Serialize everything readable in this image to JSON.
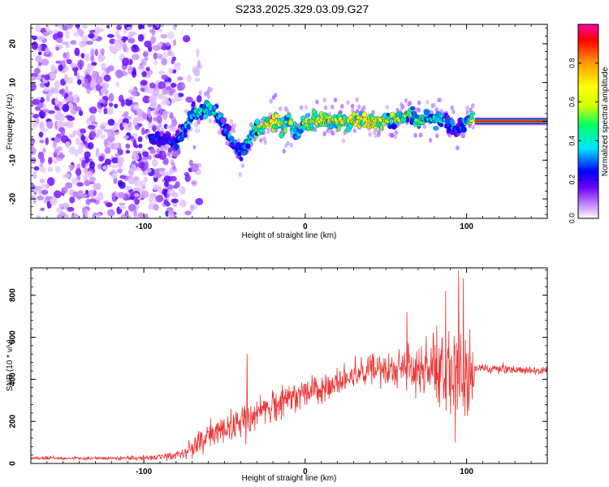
{
  "figure": {
    "title": "S233.2025.329.03.09.G27"
  },
  "chart_data": [
    {
      "type": "heatmap",
      "title": "S233.2025.329.03.09.G27",
      "xlabel": "Height of straight line (km)",
      "ylabel": "Frequency (Hz)",
      "xlim": [
        -170,
        150
      ],
      "ylim": [
        -25,
        25
      ],
      "x_ticks": [
        -100,
        0,
        100
      ],
      "x_tick_labels": [
        "-100",
        "0",
        "100"
      ],
      "y_ticks": [
        -20,
        -10,
        0,
        10,
        20
      ],
      "y_tick_labels": [
        "-20",
        "-10",
        "0",
        "10",
        "20"
      ],
      "colorbar": {
        "label": "Normalized spectral amplitude",
        "range": [
          0,
          1
        ],
        "ticks": [
          0.0,
          0.2,
          0.4,
          0.6,
          0.8
        ],
        "tick_labels": [
          "0.0",
          "0.2",
          "0.4",
          "0.6",
          "0.8"
        ],
        "colors": [
          "#ffffff",
          "#cc99ff",
          "#6a00ff",
          "#0000ff",
          "#00e5ff",
          "#00ff66",
          "#d4ff00",
          "#ffff00",
          "#ff9900",
          "#ff0000",
          "#ff00aa"
        ]
      },
      "ridge": {
        "description_x_km": [
          -95,
          -85,
          -80,
          -75,
          -70,
          -60,
          -55,
          -50,
          -45,
          -40,
          -35,
          -30,
          -25,
          -20,
          -15,
          -10,
          -5,
          0,
          10,
          20,
          30,
          40,
          50,
          60,
          65,
          70,
          75,
          80,
          85,
          90,
          95,
          100,
          105,
          110,
          150
        ],
        "center_hz": [
          -4,
          -5,
          -6,
          -2,
          2,
          3,
          2,
          -2,
          -5,
          -8,
          -5,
          -2,
          -1,
          0,
          -1,
          0,
          -3,
          0,
          0,
          0,
          0,
          0,
          0,
          1,
          2,
          0,
          1,
          0,
          1,
          -1,
          -2,
          0,
          1,
          0,
          0
        ],
        "amplitude": [
          0.3,
          0.3,
          0.3,
          0.4,
          0.5,
          0.5,
          0.5,
          0.4,
          0.4,
          0.35,
          0.5,
          0.6,
          0.75,
          0.9,
          0.7,
          0.6,
          0.5,
          0.6,
          0.85,
          0.7,
          0.75,
          0.8,
          0.7,
          0.6,
          0.6,
          0.55,
          0.5,
          0.5,
          0.45,
          0.4,
          0.35,
          0.5,
          0.9,
          0.95,
          0.95
        ]
      },
      "noise_region_x_km": [
        -170,
        -80
      ]
    },
    {
      "type": "line",
      "xlabel": "Height of straight line (km)",
      "ylabel": "SNR (10 * v/v)",
      "xlim": [
        -170,
        150
      ],
      "ylim": [
        0,
        930
      ],
      "x_ticks": [
        -100,
        0,
        100
      ],
      "x_tick_labels": [
        "-100",
        "0",
        "100"
      ],
      "y_ticks": [
        0,
        200,
        400,
        600,
        800
      ],
      "y_tick_labels": [
        "0",
        "200",
        "400",
        "600",
        "800"
      ],
      "color": "#ee3333",
      "envelope": {
        "x_km": [
          -170,
          -150,
          -120,
          -90,
          -80,
          -70,
          -60,
          -50,
          -40,
          -35,
          -30,
          -20,
          -10,
          0,
          10,
          20,
          30,
          40,
          50,
          60,
          70,
          80,
          90,
          95,
          100,
          104,
          105,
          110,
          130,
          150
        ],
        "mean": [
          25,
          25,
          25,
          30,
          40,
          70,
          130,
          160,
          200,
          180,
          230,
          270,
          310,
          330,
          360,
          380,
          420,
          440,
          440,
          450,
          450,
          450,
          450,
          450,
          440,
          430,
          450,
          450,
          445,
          440
        ],
        "spread": [
          8,
          8,
          8,
          15,
          25,
          50,
          70,
          80,
          90,
          100,
          90,
          80,
          80,
          70,
          70,
          70,
          70,
          80,
          90,
          110,
          130,
          160,
          200,
          230,
          210,
          170,
          20,
          20,
          20,
          20
        ]
      },
      "spikes": [
        {
          "x_km": -36,
          "value": 520
        },
        {
          "x_km": 63,
          "value": 720
        },
        {
          "x_km": 87,
          "value": 820
        },
        {
          "x_km": 95,
          "value": 920
        },
        {
          "x_km": 98,
          "value": 880
        },
        {
          "x_km": 93,
          "value": 100
        }
      ]
    }
  ]
}
